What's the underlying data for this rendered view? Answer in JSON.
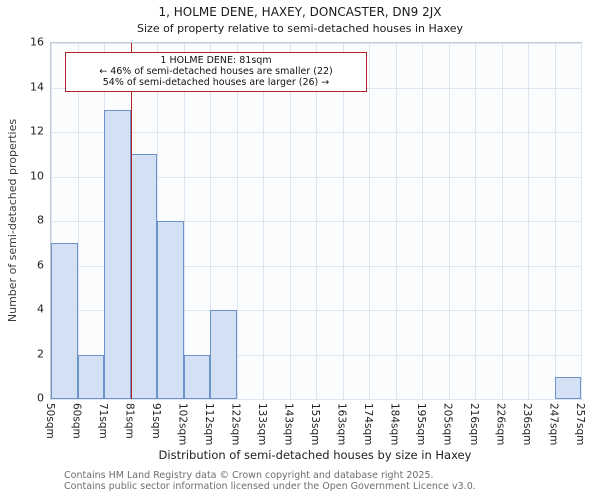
{
  "chart_data": {
    "type": "bar",
    "title": "1, HOLME DENE, HAXEY, DONCASTER, DN9 2JX",
    "subtitle": "Size of property relative to semi-detached houses in Haxey",
    "xlabel": "Distribution of semi-detached houses by size in Haxey",
    "ylabel": "Number of semi-detached properties",
    "categories": [
      "50sqm",
      "60sqm",
      "71sqm",
      "81sqm",
      "91sqm",
      "102sqm",
      "112sqm",
      "122sqm",
      "133sqm",
      "143sqm",
      "153sqm",
      "163sqm",
      "174sqm",
      "184sqm",
      "195sqm",
      "205sqm",
      "216sqm",
      "226sqm",
      "236sqm",
      "247sqm",
      "257sqm"
    ],
    "values": [
      7,
      2,
      13,
      11,
      8,
      2,
      4,
      0,
      0,
      0,
      0,
      0,
      0,
      0,
      0,
      0,
      0,
      0,
      0,
      1
    ],
    "ylim": [
      0,
      16
    ],
    "ytick_step": 2,
    "grid": true,
    "legend": "none",
    "bar_fill": "#d4e0f3",
    "bar_border": "#6e93c8",
    "marker": {
      "label": "81sqm",
      "tick_index": 3,
      "color": "#b22222"
    },
    "annotation": {
      "line1": "1 HOLME DENE: 81sqm",
      "line2": "← 46% of semi-detached houses are smaller (22)",
      "line3": "54% of semi-detached houses are larger (26) →",
      "border_color": "#b22222"
    }
  },
  "footer": {
    "line1": "Contains HM Land Registry data © Crown copyright and database right 2025.",
    "line2": "Contains public sector information licensed under the Open Government Licence v3.0."
  }
}
